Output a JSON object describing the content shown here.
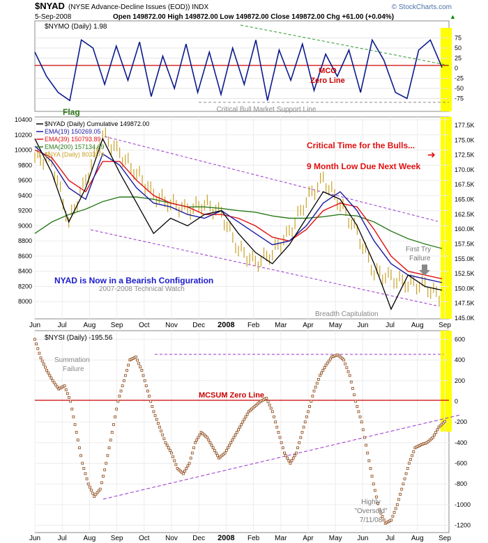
{
  "header": {
    "symbol": "$NYAD",
    "description": "(NYSE Advance-Decline Issues (EOD)) INDX",
    "date": "5-Sep-2008",
    "ohlc": "Open 149872.00  High 149872.00  Low 149872.00  Close 149872.00  Chg +61.00 (+0.04%)",
    "change_arrow": "▲",
    "watermark": "© StockCharts.com"
  },
  "colors": {
    "highlight": "#ffff00",
    "zero_line": "#cc0000",
    "nymo_line": "#0a1a8c",
    "nyad_line": "#000000",
    "ema19": "#1a1aa0",
    "ema39": "#e01010",
    "ema200": "#2a7a1a",
    "nya_bars": "#c9a227",
    "channel": "#9933cc",
    "green_dash": "#2e9a2e",
    "nysi_dots": "#8b4513"
  },
  "x_axis_labels": [
    "Jun",
    "Jul",
    "Aug",
    "Sep",
    "Oct",
    "Nov",
    "Dec",
    "2008",
    "Feb",
    "Mar",
    "Apr",
    "May",
    "Jun",
    "Jul",
    "Aug",
    "Sep"
  ],
  "chart_data": [
    {
      "type": "line",
      "title": "$NYMO (Daily) 1.98",
      "ylim": [
        -100,
        100
      ],
      "yticks": [
        75,
        50,
        25,
        0,
        -25,
        -50,
        -75
      ],
      "series": [
        {
          "name": "$NYMO (Daily) 1.98",
          "values": [
            40,
            -20,
            -60,
            -80,
            70,
            50,
            -40,
            55,
            -30,
            65,
            -70,
            30,
            -50,
            60,
            -60,
            40,
            -65,
            50,
            -40,
            70,
            -80,
            45,
            -30,
            60,
            -55,
            35,
            -20,
            45,
            -60,
            70,
            20,
            -60,
            -75,
            45,
            70,
            2
          ]
        }
      ],
      "annotations": [
        "MCO",
        "Zero Line",
        "Critical Bull Market Support Line",
        "Flag"
      ]
    },
    {
      "type": "line",
      "title": "$NYAD (Daily) Cumulative 149872.00",
      "ylim_left": [
        7800,
        10400
      ],
      "yticks_left": [
        10400,
        10200,
        10000,
        9800,
        9600,
        9400,
        9200,
        9000,
        8800,
        8600,
        8400,
        8200,
        8000
      ],
      "ylim_right": [
        145000,
        177500
      ],
      "yticks_right": [
        "177.5K",
        "175.0K",
        "172.5K",
        "170.0K",
        "167.5K",
        "165.0K",
        "162.5K",
        "160.0K",
        "157.5K",
        "155.0K",
        "152.5K",
        "150.0K",
        "147.5K",
        "145.0K"
      ],
      "series": [
        {
          "name": "EMA(19) 150269.05",
          "values": [
            10050,
            9850,
            9500,
            9350,
            9950,
            9800,
            9500,
            9300,
            9250,
            9150,
            9100,
            9200,
            9050,
            8900,
            8750,
            8800,
            9000,
            9300,
            9450,
            9200,
            8800,
            8500,
            8350,
            8300,
            8250
          ]
        },
        {
          "name": "EMA(39) 150793.89",
          "values": [
            10000,
            9900,
            9600,
            9450,
            9850,
            9850,
            9600,
            9400,
            9300,
            9250,
            9150,
            9150,
            9100,
            9000,
            8850,
            8800,
            8950,
            9200,
            9300,
            9250,
            8950,
            8600,
            8400,
            8350,
            8300
          ]
        },
        {
          "name": "EMA(200) 157134.69",
          "values": [
            8900,
            9050,
            9150,
            9220,
            9320,
            9380,
            9380,
            9350,
            9300,
            9250,
            9250,
            9230,
            9200,
            9180,
            9130,
            9100,
            9100,
            9120,
            9150,
            9130,
            9050,
            8930,
            8830,
            8760,
            8700
          ]
        },
        {
          "name": "$NYAD (Daily) Cumulative 149872.00",
          "values": [
            10150,
            9700,
            9050,
            9500,
            10150,
            9700,
            9300,
            8900,
            9100,
            9000,
            9150,
            9200,
            8900,
            8650,
            8500,
            8750,
            9100,
            9450,
            9350,
            9000,
            8500,
            7900,
            8350,
            8200,
            8150
          ]
        },
        {
          "name": "$NYA (Daily) 8033.76",
          "values": [
            9900,
            9850,
            9050,
            9600,
            10200,
            9950,
            9700,
            9400,
            9300,
            9200,
            9300,
            9150,
            8700,
            8500,
            8650,
            8900,
            9350,
            9600,
            9300,
            8900,
            8400,
            8300,
            8250,
            8200,
            8050
          ]
        }
      ],
      "annotations": [
        "Critical Time for the Bulls...",
        "9 Month Low Due Next Week",
        "NYAD is Now in a Bearish Configuration",
        "2007-2008 Technical Watch",
        "First Try",
        "Failure",
        "Breadth Capitulation"
      ]
    },
    {
      "type": "scatter",
      "title": "$NYSI (Daily) -195.56",
      "ylim": [
        -1250,
        650
      ],
      "yticks": [
        600,
        400,
        200,
        0,
        -200,
        -400,
        -600,
        -800,
        -1000,
        -1200
      ],
      "series": [
        {
          "name": "$NYSI (Daily) -195.56",
          "values": [
            600,
            420,
            300,
            200,
            120,
            150,
            0,
            -300,
            -600,
            -800,
            -920,
            -850,
            -600,
            -300,
            0,
            200,
            400,
            430,
            300,
            100,
            -100,
            -250,
            -400,
            -500,
            -650,
            -700,
            -600,
            -400,
            -300,
            -350,
            -450,
            -550,
            -500,
            -400,
            -300,
            -200,
            -100,
            -50,
            0,
            30,
            -100,
            -300,
            -500,
            -600,
            -500,
            -300,
            -100,
            100,
            250,
            350,
            430,
            450,
            400,
            250,
            0,
            -200,
            -500,
            -800,
            -1050,
            -1180,
            -1150,
            -1000,
            -800,
            -600,
            -450,
            -420,
            -400,
            -350,
            -250,
            -195
          ]
        }
      ],
      "annotations": [
        "Summation",
        "Failure",
        "MCSUM Zero Line",
        "Highly",
        "\"Oversold\"",
        "7/11/08"
      ]
    }
  ]
}
